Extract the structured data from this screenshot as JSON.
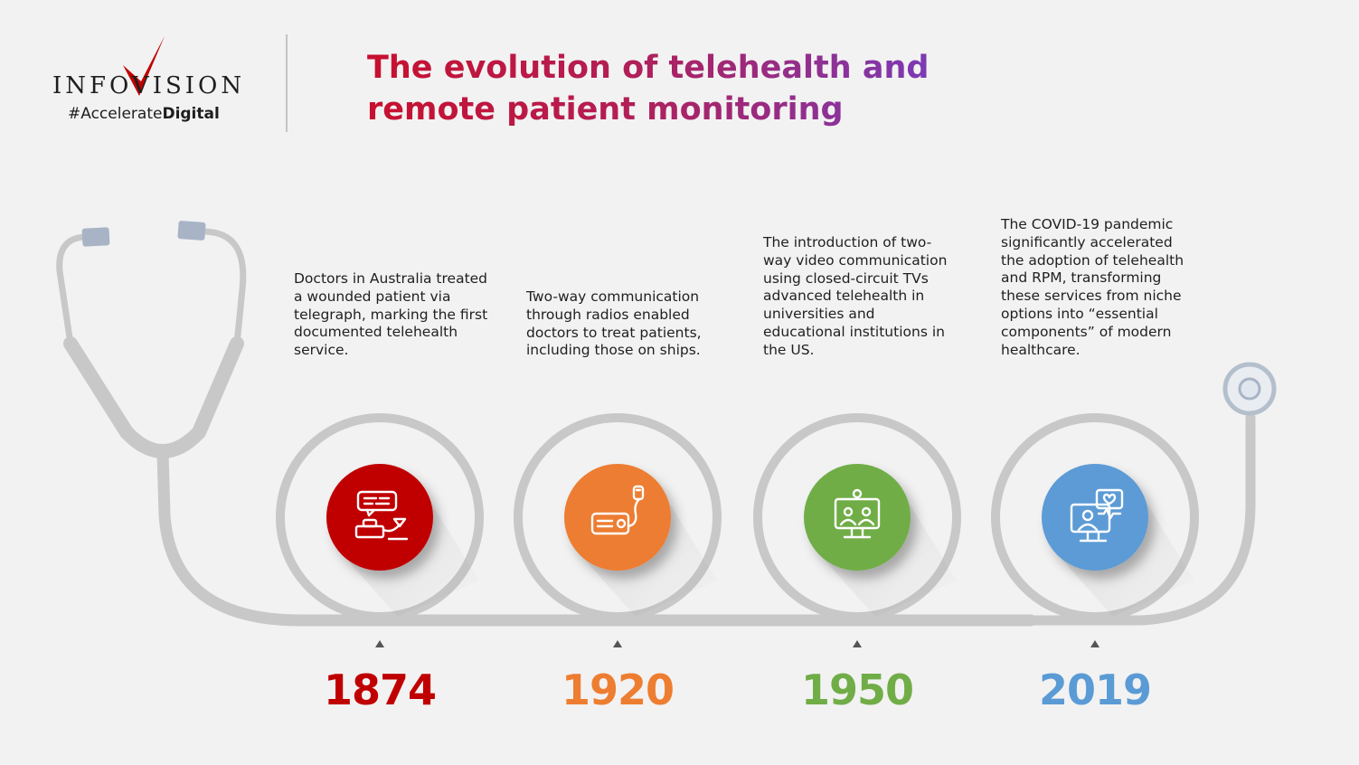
{
  "header": {
    "logo_text": "INFOVISION",
    "tagline_part1": "#Accelerate",
    "tagline_part2": "Digital",
    "title_line1": "The evolution of telehealth and",
    "title_line2": "remote patient monitoring"
  },
  "timeline": [
    {
      "year": "1874",
      "color": "#c00000",
      "icon": "telegraph-icon",
      "description": "Doctors in Australia treated a wounded patient via telegraph, marking the first documented telehealth service."
    },
    {
      "year": "1920",
      "color": "#ed7d31",
      "icon": "radio-icon",
      "description": "Two-way communication through radios enabled doctors to treat patients, including those on ships."
    },
    {
      "year": "1950",
      "color": "#70ad47",
      "icon": "video-monitor-icon",
      "description": "The introduction of two-way video communication using closed-circuit TVs advanced telehealth in universities and educational institutions in the US."
    },
    {
      "year": "2019",
      "color": "#5b9bd5",
      "icon": "telehealth-screen-icon",
      "description": "The COVID-19 pandemic significantly accelerated the adoption of telehealth and RPM, transforming these services from niche options into “essential components” of modern healthcare."
    }
  ],
  "colors": {
    "tube": "#c8c8c8",
    "earpiece": "#a8b4c6",
    "logo_v": "#c00000"
  }
}
